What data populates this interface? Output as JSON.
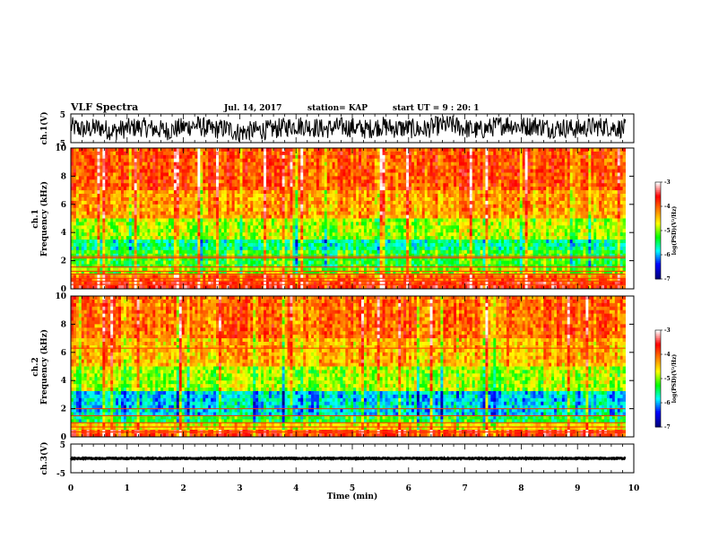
{
  "header": {
    "title": "VLF Spectra",
    "date": "Jul. 14, 2017",
    "station": "station= KAP",
    "start": "start  UT =   9 : 20: 1"
  },
  "chart_data": [
    {
      "type": "line",
      "panel": "waveform-ch1",
      "ylabel": "ch.1(V)",
      "ylim": [
        -5,
        5
      ],
      "y_ticks": [
        "5",
        "-5"
      ],
      "xlim": [
        0,
        10
      ],
      "series": [
        {
          "x": [
            0,
            0.25,
            0.5,
            0.75,
            1,
            1.25,
            1.5,
            1.75,
            2,
            2.25,
            2.5,
            2.75,
            3,
            3.25,
            3.5,
            3.75,
            4,
            4.25,
            4.5,
            4.75,
            5,
            5.25,
            5.5,
            5.75,
            6,
            6.25,
            6.5,
            6.75,
            7,
            7.25,
            7.5,
            7.75,
            8,
            8.25,
            8.5,
            8.75,
            9,
            9.25,
            9.5,
            9.75,
            9.85
          ],
          "y": [
            0.5,
            -0.5,
            0.3,
            -1,
            0,
            0.5,
            -0.3,
            -0.8,
            0.4,
            1,
            -0.5,
            0,
            -1.5,
            -0.8,
            -0.6,
            0.2,
            1,
            0.6,
            -0.3,
            0.5,
            0.3,
            -0.4,
            0.8,
            0,
            0,
            -0.5,
            0.8,
            1.2,
            0,
            -0.8,
            0.5,
            1.5,
            0.5,
            1,
            0,
            0.2,
            -0.3,
            0.5,
            0.6,
            0,
            -0.2
          ],
          "noise_amplitude_v": 3.5
        }
      ]
    },
    {
      "type": "heatmap",
      "panel": "spectrogram-ch1",
      "ylabel": "ch.1\nFrequency  (kHz)",
      "ylim": [
        0,
        10
      ],
      "y_ticks": [
        "0",
        "2",
        "4",
        "6",
        "8",
        "10"
      ],
      "xlim": [
        0,
        10
      ],
      "data_end_min": 9.85,
      "z_label": "log(PSD)(V²/Hz)",
      "zlim": [
        -7,
        -3
      ],
      "z_ticks": [
        "-3",
        "-4",
        "-5",
        "-6",
        "-7"
      ],
      "colormap": [
        "#ffffff",
        "#ff0000",
        "#ff8000",
        "#ffff00",
        "#00ff00",
        "#00ffff",
        "#0000ff",
        "#000080"
      ],
      "band_levels_khz": [
        {
          "from": 0,
          "to": 0.4,
          "log_psd": -3.2
        },
        {
          "from": 0.4,
          "to": 0.9,
          "log_psd": -3.6
        },
        {
          "from": 0.9,
          "to": 1.6,
          "log_psd": -4.7
        },
        {
          "from": 1.6,
          "to": 2.8,
          "log_psd": -5.0
        },
        {
          "from": 2.8,
          "to": 3.6,
          "log_psd": -5.4
        },
        {
          "from": 3.6,
          "to": 5.0,
          "log_psd": -4.6
        },
        {
          "from": 5.0,
          "to": 7.0,
          "log_psd": -3.9
        },
        {
          "from": 7.0,
          "to": 10.0,
          "log_psd": -3.5
        }
      ],
      "tone_lines_khz": [
        0.3,
        0.55,
        0.75,
        1.05,
        1.25,
        1.55,
        2.2,
        2.3
      ]
    },
    {
      "type": "heatmap",
      "panel": "spectrogram-ch2",
      "ylabel": "ch.2\nFrequency  (kHz)",
      "ylim": [
        0,
        10
      ],
      "y_ticks": [
        "0",
        "2",
        "4",
        "6",
        "8",
        "10"
      ],
      "xlim": [
        0,
        10
      ],
      "data_end_min": 9.85,
      "z_label": "log(PSD)(V²/Hz)",
      "zlim": [
        -7,
        -3
      ],
      "z_ticks": [
        "-3",
        "-4",
        "-5",
        "-6",
        "-7"
      ],
      "colormap": [
        "#ffffff",
        "#ff0000",
        "#ff8000",
        "#ffff00",
        "#00ff00",
        "#00ffff",
        "#0000ff",
        "#000080"
      ],
      "band_levels_khz": [
        {
          "from": 0,
          "to": 0.4,
          "log_psd": -3.3
        },
        {
          "from": 0.4,
          "to": 0.9,
          "log_psd": -4.2
        },
        {
          "from": 0.9,
          "to": 1.6,
          "log_psd": -5.1
        },
        {
          "from": 1.6,
          "to": 3.2,
          "log_psd": -5.7
        },
        {
          "from": 3.2,
          "to": 5.0,
          "log_psd": -4.6
        },
        {
          "from": 5.0,
          "to": 7.0,
          "log_psd": -4.0
        },
        {
          "from": 7.0,
          "to": 10.0,
          "log_psd": -3.6
        }
      ],
      "tone_lines_khz": [
        0.35,
        0.7,
        1.0,
        1.5,
        2.0,
        6.3
      ]
    },
    {
      "type": "line",
      "panel": "waveform-ch3",
      "ylabel": "ch.3(V)",
      "ylim": [
        -5,
        5
      ],
      "y_ticks": [
        "5",
        "-5"
      ],
      "xlim": [
        0,
        10
      ],
      "series": [
        {
          "x": [
            0,
            9.85
          ],
          "y": [
            0,
            0
          ],
          "noise_amplitude_v": 0.15
        }
      ]
    }
  ],
  "xaxis": {
    "label": "Time  (min)",
    "ticks": [
      "0",
      "1",
      "2",
      "3",
      "4",
      "5",
      "6",
      "7",
      "8",
      "9",
      "10"
    ]
  }
}
